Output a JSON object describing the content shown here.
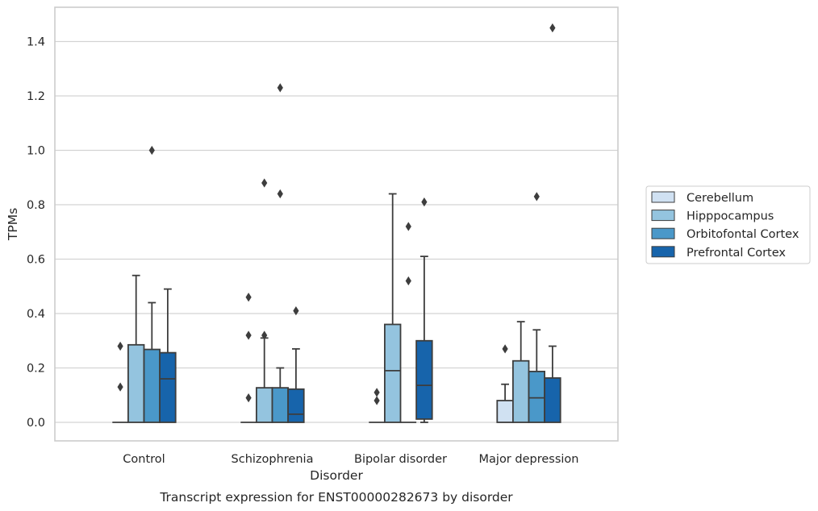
{
  "chart_data": {
    "type": "box",
    "caption": "Transcript expression for ENST00000282673 by disorder",
    "xlabel": "Disorder",
    "ylabel": "TPMs",
    "ylim": [
      -0.07,
      1.52
    ],
    "yticks": [
      "0.0",
      "0.2",
      "0.4",
      "0.6",
      "0.8",
      "1.0",
      "1.2",
      "1.4"
    ],
    "grid": "horizontal",
    "legend_position": "right",
    "categories": [
      "Control",
      "Schizophrenia",
      "Bipolar disorder",
      "Major depression"
    ],
    "series": [
      {
        "name": "Cerebellum",
        "color": "#d0e1f2",
        "boxes": [
          {
            "q1": 0.0,
            "median": 0.0,
            "q3": 0.0,
            "whislo": 0.0,
            "whishi": 0.0,
            "fliers": [
              0.13,
              0.28
            ]
          },
          {
            "q1": 0.0,
            "median": 0.0,
            "q3": 0.0,
            "whislo": 0.0,
            "whishi": 0.0,
            "fliers": [
              0.09,
              0.32,
              0.46
            ]
          },
          {
            "q1": 0.0,
            "median": 0.0,
            "q3": 0.0,
            "whislo": 0.0,
            "whishi": 0.0,
            "fliers": [
              0.08,
              0.11
            ]
          },
          {
            "q1": 0.0,
            "median": 0.0,
            "q3": 0.08,
            "whislo": 0.0,
            "whishi": 0.14,
            "fliers": [
              0.27
            ]
          }
        ]
      },
      {
        "name": "Hipppocampus",
        "color": "#94c4df",
        "boxes": [
          {
            "q1": 0.0,
            "median": 0.0,
            "q3": 0.285,
            "whislo": 0.0,
            "whishi": 0.54,
            "fliers": []
          },
          {
            "q1": 0.0,
            "median": 0.0,
            "q3": 0.127,
            "whislo": 0.0,
            "whishi": 0.31,
            "fliers": [
              0.32,
              0.88
            ]
          },
          {
            "q1": 0.0,
            "median": 0.19,
            "q3": 0.36,
            "whislo": 0.0,
            "whishi": 0.84,
            "fliers": []
          },
          {
            "q1": 0.0,
            "median": 0.0,
            "q3": 0.226,
            "whislo": 0.0,
            "whishi": 0.37,
            "fliers": []
          }
        ]
      },
      {
        "name": "Orbitofontal Cortex",
        "color": "#4a98c9",
        "boxes": [
          {
            "q1": 0.0,
            "median": 0.0,
            "q3": 0.268,
            "whislo": 0.0,
            "whishi": 0.44,
            "fliers": [
              1.0
            ]
          },
          {
            "q1": 0.0,
            "median": 0.0,
            "q3": 0.127,
            "whislo": 0.0,
            "whishi": 0.2,
            "fliers": [
              0.84,
              1.23
            ]
          },
          {
            "q1": 0.0,
            "median": 0.0,
            "q3": 0.0,
            "whislo": 0.0,
            "whishi": 0.0,
            "fliers": [
              0.52,
              0.72
            ]
          },
          {
            "q1": 0.0,
            "median": 0.09,
            "q3": 0.187,
            "whislo": 0.0,
            "whishi": 0.34,
            "fliers": [
              0.83
            ]
          }
        ]
      },
      {
        "name": "Prefrontal Cortex",
        "color": "#1764ab",
        "boxes": [
          {
            "q1": 0.0,
            "median": 0.16,
            "q3": 0.256,
            "whislo": 0.0,
            "whishi": 0.49,
            "fliers": []
          },
          {
            "q1": 0.0,
            "median": 0.03,
            "q3": 0.122,
            "whislo": 0.0,
            "whishi": 0.27,
            "fliers": [
              0.41
            ]
          },
          {
            "q1": 0.012,
            "median": 0.136,
            "q3": 0.3,
            "whislo": 0.0,
            "whishi": 0.61,
            "fliers": [
              0.81
            ]
          },
          {
            "q1": 0.0,
            "median": 0.0,
            "q3": 0.163,
            "whislo": 0.0,
            "whishi": 0.28,
            "fliers": [
              1.45
            ]
          }
        ]
      }
    ]
  }
}
